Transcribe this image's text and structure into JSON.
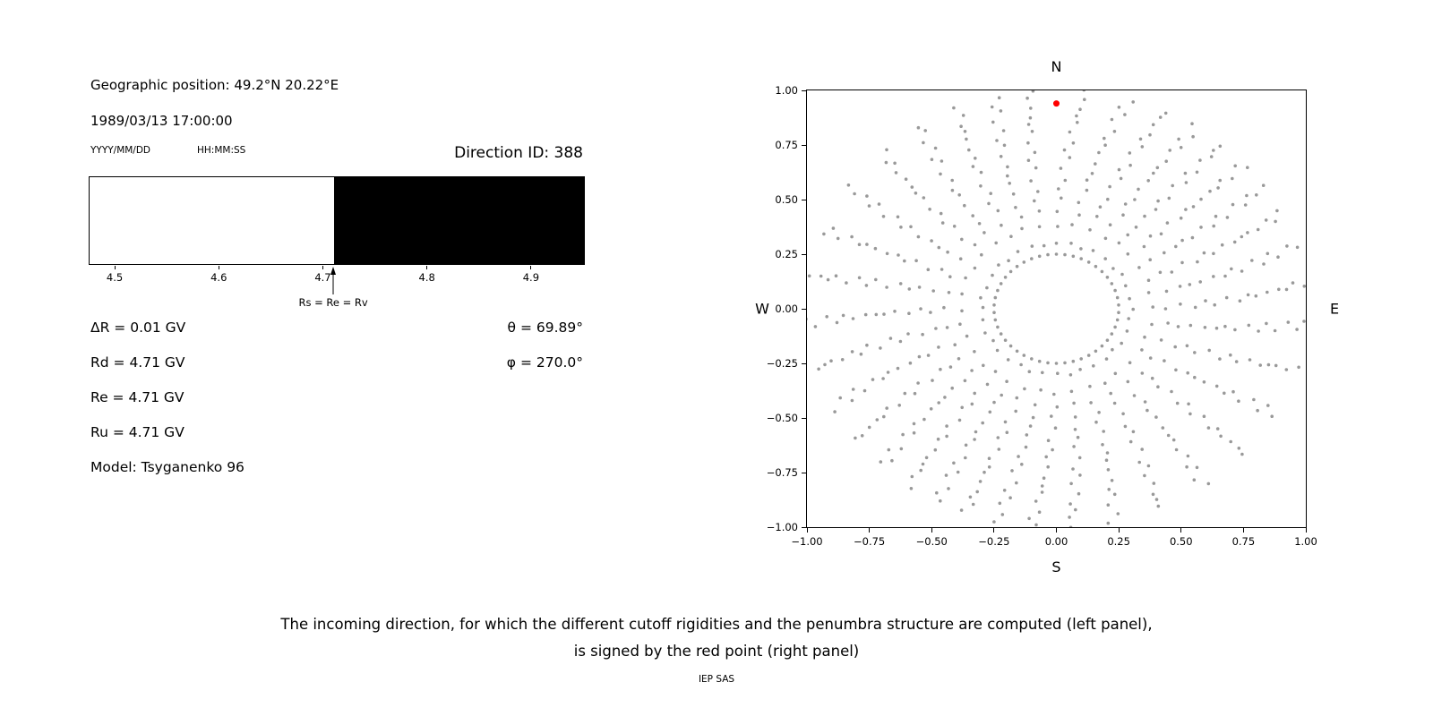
{
  "left_panel": {
    "geo_position": "Geographic position: 49.2°N 20.22°E",
    "datetime": "1989/03/13 17:00:00",
    "date_format_label": "YYYY/MM/DD",
    "time_format_label": "HH:MM:SS",
    "direction_id": "Direction ID: 388",
    "params": [
      "ΔR = 0.01 GV",
      "Rd = 4.71 GV",
      "Re = 4.71 GV",
      "Ru = 4.71 GV",
      "Model: Tsyganenko 96"
    ],
    "angles": [
      "θ = 69.89°",
      "φ = 270.0°"
    ]
  },
  "chart_data": [
    {
      "id": "penumbra",
      "type": "bar",
      "xlabel_unit": "GV",
      "xlim": [
        4.475,
        4.95
      ],
      "x_ticks": [
        4.5,
        4.6,
        4.7,
        4.8,
        4.9
      ],
      "x_tick_labels": [
        "4.5",
        "4.6",
        "4.7",
        "4.8",
        "4.9"
      ],
      "segments": [
        {
          "from": 4.475,
          "to": 4.71,
          "color": "#ffffff"
        },
        {
          "from": 4.71,
          "to": 4.95,
          "color": "#000000"
        }
      ],
      "annotation": {
        "value": 4.71,
        "label": "Rs = Re = Rv"
      }
    },
    {
      "id": "direction-map",
      "type": "scatter",
      "xlim": [
        -1,
        1
      ],
      "ylim": [
        -1,
        1
      ],
      "x_ticks": [
        -1,
        -0.75,
        -0.5,
        -0.25,
        0,
        0.25,
        0.5,
        0.75,
        1
      ],
      "x_tick_labels": [
        "−1.00",
        "−0.75",
        "−0.50",
        "−0.25",
        "0.00",
        "0.25",
        "0.50",
        "0.75",
        "1.00"
      ],
      "y_ticks": [
        1,
        0.75,
        0.5,
        0.25,
        0,
        -0.25,
        -0.5,
        -0.75,
        -1
      ],
      "y_tick_labels": [
        "1.00",
        "0.75",
        "0.50",
        "0.25",
        "0.00",
        "−0.25",
        "−0.50",
        "−0.75",
        "−1.00"
      ],
      "compass_labels": {
        "top": "N",
        "bottom": "S",
        "left": "W",
        "right": "E"
      },
      "grey_points": {
        "color": "#999999",
        "dot_radius_px": 1.8,
        "generator": {
          "ring_radius": 0.25,
          "ring_point_count": 46,
          "azimuth_start_deg": 0,
          "azimuth_step_deg": 10,
          "azimuth_count": 36,
          "ray_r_min": 0.3,
          "ray_r_max": 1.0,
          "ray_point_count": 16,
          "bend_max_deg": 7
        }
      },
      "red_point": {
        "x": 0.0,
        "y": 0.94,
        "color": "#ff0000",
        "radius_px": 3.5
      }
    }
  ],
  "caption": {
    "line1": "The incoming direction, for which the different cutoff rigidities and the penumbra structure are computed (left panel),",
    "line2": "is signed by the red point (right panel)",
    "credit": "IEP SAS"
  }
}
